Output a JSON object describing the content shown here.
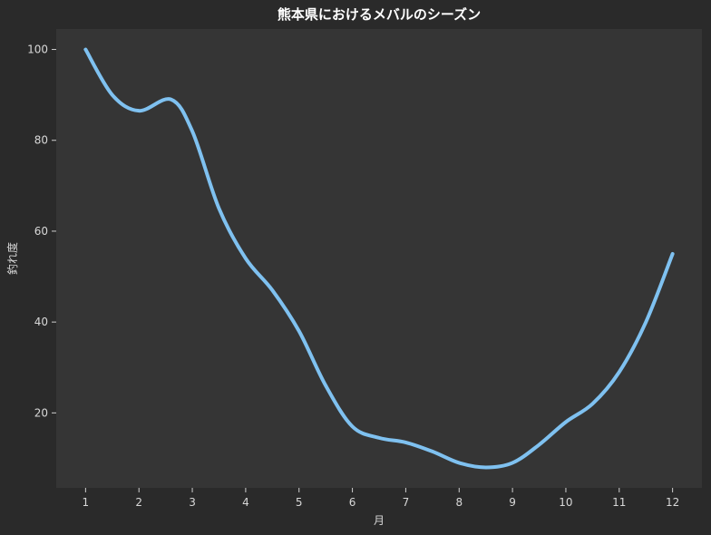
{
  "colors": {
    "background": "#2a2a2a",
    "plot_background": "#353535",
    "line": "#7fc1f0",
    "text": "#d8d8d8",
    "tick": "#cfcfcf"
  },
  "chart_data": {
    "type": "line",
    "title": "熊本県におけるメバルのシーズン",
    "xlabel": "月",
    "ylabel": "釣れ度",
    "x": [
      1,
      1.5,
      2,
      2.6,
      3,
      3.5,
      4,
      4.5,
      5,
      5.5,
      6,
      6.5,
      7,
      7.5,
      8,
      8.5,
      9,
      9.5,
      10,
      10.5,
      11,
      11.5,
      12
    ],
    "y": [
      100,
      90,
      86.5,
      89,
      82,
      65,
      54,
      47,
      38,
      26,
      17,
      14.5,
      13.5,
      11.5,
      9,
      8,
      9,
      13,
      18,
      22,
      29,
      40,
      55
    ],
    "xticks": [
      "1",
      "2",
      "3",
      "4",
      "5",
      "6",
      "7",
      "8",
      "9",
      "10",
      "11",
      "12"
    ],
    "yticks": [
      "20",
      "40",
      "60",
      "80",
      "100"
    ],
    "xlim": [
      0.45,
      12.55
    ],
    "ylim": [
      3.5,
      104.5
    ],
    "grid": false,
    "series": [
      {
        "color": "#7fc1f0"
      }
    ]
  }
}
